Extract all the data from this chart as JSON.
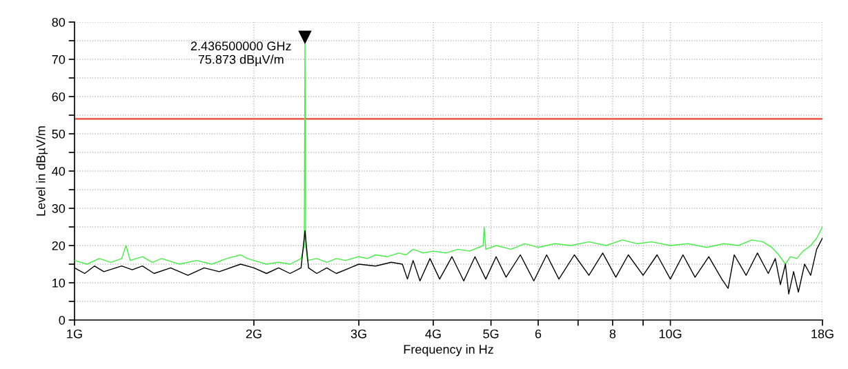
{
  "chart_data": {
    "type": "line",
    "xlabel": "Frequency in Hz",
    "ylabel": "Level in dBµV/m",
    "log": "x",
    "grid": true,
    "line_style": "solid",
    "marker": "none",
    "xlim": [
      1,
      18
    ],
    "xticks": [
      {
        "value": 1,
        "label": "1G"
      },
      {
        "value": 2,
        "label": "2G"
      },
      {
        "value": 3,
        "label": "3G"
      },
      {
        "value": 4,
        "label": "4G"
      },
      {
        "value": 5,
        "label": "5G"
      },
      6,
      {
        "value": 7,
        "label": null
      },
      8,
      {
        "value": 9,
        "label": null
      },
      {
        "value": 10,
        "label": "10G"
      },
      {
        "value": 18,
        "label": "18G"
      }
    ],
    "ylim": [
      0,
      80
    ],
    "yticks": [
      0,
      {
        "value": 5,
        "label": null
      },
      10,
      {
        "value": 15,
        "label": null
      },
      20,
      {
        "value": 25,
        "label": null
      },
      30,
      {
        "value": 35,
        "label": null
      },
      40,
      {
        "value": 45,
        "label": null
      },
      50,
      {
        "value": 55,
        "label": null
      },
      60,
      {
        "value": 65,
        "label": null
      },
      70,
      {
        "value": 75,
        "label": null
      },
      80
    ],
    "ref_lines": [
      {
        "axis": "y",
        "value": 54,
        "color": "#ee4433"
      }
    ],
    "annotations": [
      {
        "text": "2.436500000 GHz\n75.873 dBµV/m",
        "x": 2.4365,
        "y": 75.873
      }
    ],
    "series": [
      {
        "color": "#44ee44",
        "x": [
          1.0,
          1.05,
          1.1,
          1.15,
          1.2,
          1.22,
          1.24,
          1.3,
          1.35,
          1.4,
          1.5,
          1.6,
          1.7,
          1.8,
          1.9,
          1.95,
          2.0,
          2.1,
          2.2,
          2.3,
          2.4,
          2.43,
          2.4365,
          2.443,
          2.46,
          2.55,
          2.65,
          2.75,
          2.85,
          3.0,
          3.1,
          3.2,
          3.35,
          3.5,
          3.6,
          3.7,
          3.85,
          4.0,
          4.2,
          4.4,
          4.6,
          4.85,
          4.87,
          4.9,
          5.1,
          5.4,
          5.7,
          6.0,
          6.4,
          6.8,
          7.3,
          7.8,
          8.3,
          8.8,
          9.3,
          10.0,
          10.7,
          11.5,
          12.3,
          13.0,
          13.7,
          14.3,
          14.8,
          15.2,
          15.6,
          15.9,
          16.3,
          16.7,
          17.2,
          17.6,
          18.0
        ],
        "values": [
          16,
          15,
          16.5,
          15.5,
          16.5,
          20,
          16,
          17,
          15.5,
          16.5,
          15,
          16,
          15,
          16.5,
          17.5,
          16.5,
          16,
          15,
          15.5,
          15,
          16.5,
          20,
          75.873,
          20,
          16,
          16.5,
          15.5,
          16.5,
          16,
          17,
          16.5,
          17.5,
          17,
          18,
          17.5,
          19,
          18,
          18.5,
          18,
          19,
          18.5,
          20,
          25,
          19,
          20,
          19,
          20.5,
          19.5,
          20.5,
          20,
          21,
          20,
          21.5,
          20.5,
          21,
          20,
          20.5,
          19.5,
          20.5,
          20,
          21.5,
          21,
          19.5,
          17.5,
          15,
          17,
          16.5,
          18.5,
          20,
          22,
          25
        ]
      },
      {
        "color": "#000000",
        "x": [
          1.0,
          1.04,
          1.08,
          1.12,
          1.2,
          1.25,
          1.3,
          1.36,
          1.45,
          1.55,
          1.65,
          1.75,
          1.9,
          2.0,
          2.1,
          2.2,
          2.3,
          2.4,
          2.4365,
          2.47,
          2.55,
          2.65,
          2.75,
          2.9,
          3.0,
          3.2,
          3.4,
          3.55,
          3.62,
          3.7,
          3.8,
          3.95,
          4.1,
          4.3,
          4.5,
          4.7,
          4.9,
          5.1,
          5.3,
          5.6,
          5.9,
          6.2,
          6.5,
          6.9,
          7.3,
          7.7,
          8.1,
          8.5,
          9.0,
          9.5,
          10.0,
          10.5,
          11.0,
          11.6,
          12.2,
          12.5,
          12.8,
          13.4,
          14.0,
          14.6,
          15.0,
          15.3,
          15.6,
          15.8,
          16.1,
          16.4,
          16.8,
          17.2,
          17.6,
          18.0
        ],
        "values": [
          14,
          12.5,
          14.5,
          13,
          14.5,
          13.5,
          14.5,
          12.5,
          14,
          12,
          14,
          13,
          15,
          14,
          12.5,
          14,
          12.5,
          14,
          24,
          14,
          12.5,
          14,
          12.5,
          14,
          15,
          14.5,
          15.5,
          15,
          11,
          16,
          10.5,
          16.5,
          11,
          17,
          10.5,
          17,
          11,
          17,
          11.5,
          17.5,
          10.5,
          17.5,
          11,
          17.5,
          12,
          18,
          11.5,
          17.5,
          12,
          17.5,
          11,
          17.5,
          11.5,
          17,
          11,
          8.5,
          17.5,
          12,
          18,
          12.5,
          16.5,
          9.5,
          15,
          7,
          13,
          7.5,
          15,
          12,
          19,
          22
        ]
      }
    ]
  }
}
